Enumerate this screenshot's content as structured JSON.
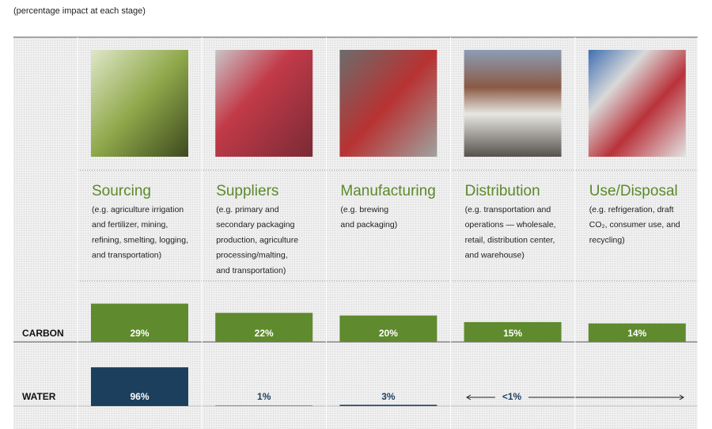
{
  "caption": "(percentage impact at each stage)",
  "row_labels": {
    "carbon": "CARBON",
    "water": "WATER"
  },
  "stages": [
    {
      "name": "Sourcing",
      "description": [
        "(e.g. agriculture irrigation",
        "and fertilizer, mining,",
        "refining, smelting, logging,",
        "and transportation)"
      ],
      "carbon": 29,
      "carbon_label": "29%",
      "water": 96,
      "water_label": "96%"
    },
    {
      "name": "Suppliers",
      "description": [
        "(e.g. primary and",
        "secondary packaging",
        "production, agriculture",
        "processing/malting,",
        "and transportation)"
      ],
      "carbon": 22,
      "carbon_label": "22%",
      "water": 1,
      "water_label": "1%"
    },
    {
      "name": "Manufacturing",
      "description": [
        "(e.g. brewing",
        "and packaging)"
      ],
      "carbon": 20,
      "carbon_label": "20%",
      "water": 3,
      "water_label": "3%"
    },
    {
      "name": "Distribution",
      "description": [
        "(e.g. transportation and",
        "operations — wholesale,",
        "retail, distribution center,",
        "and warehouse)"
      ],
      "carbon": 15,
      "carbon_label": "15%"
    },
    {
      "name": "Use/Disposal",
      "description": [
        "(e.g. refrigeration, draft",
        "CO₂, consumer use, and",
        "recycling)"
      ],
      "carbon": 14,
      "carbon_label": "14%"
    }
  ],
  "water_combined_label": "<1%"
}
